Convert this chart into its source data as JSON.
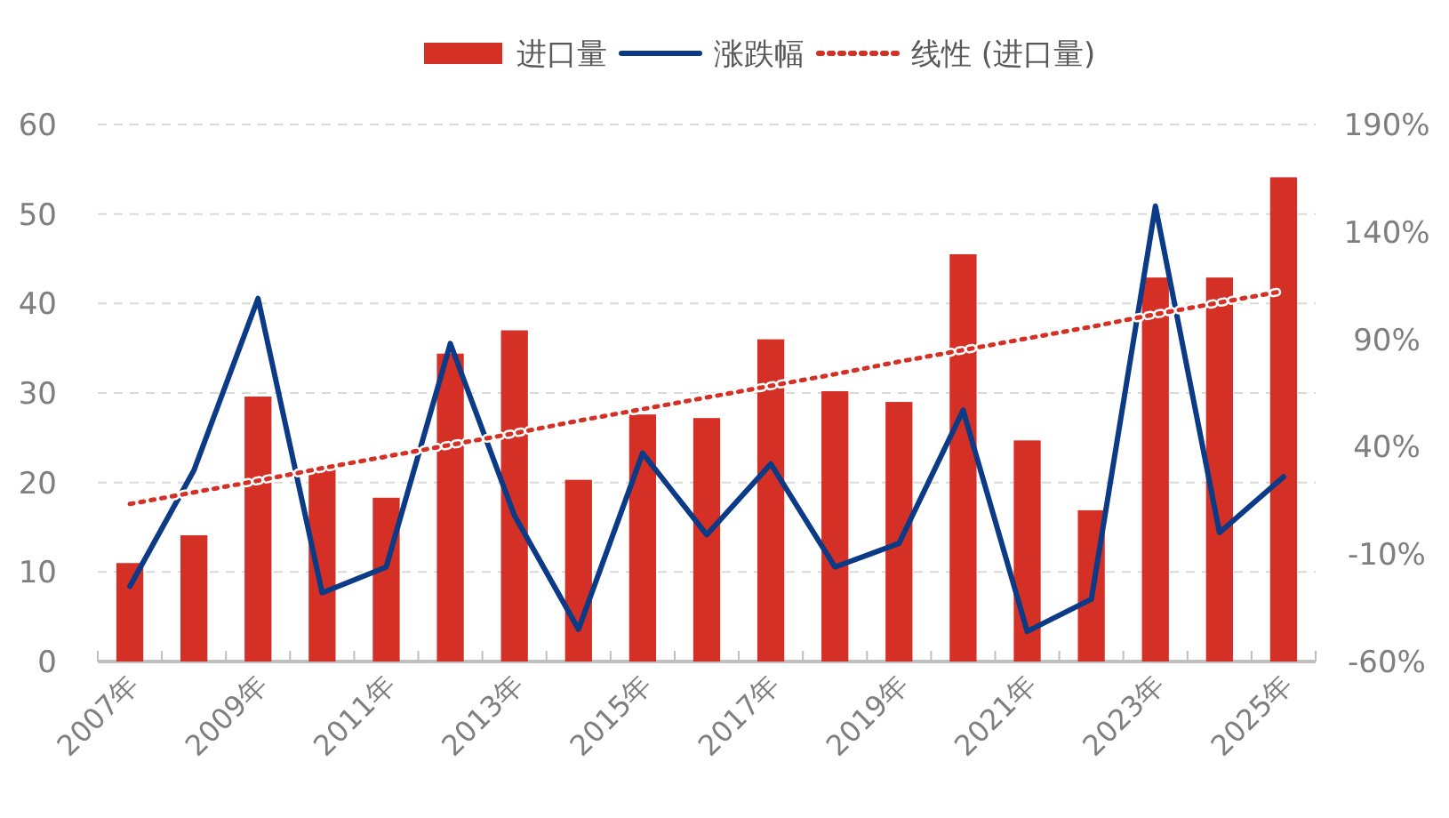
{
  "chart_data": {
    "type": "bar",
    "categories": [
      "2007年",
      null,
      "2009年",
      null,
      "2011年",
      null,
      "2013年",
      null,
      "2015年",
      null,
      "2017年",
      null,
      "2019年",
      null,
      "2021年",
      null,
      "2023年",
      null,
      "2025年"
    ],
    "series": [
      {
        "name": "进口量",
        "color": "#d43025",
        "values": [
          11.0,
          14.1,
          29.6,
          21.5,
          18.3,
          34.4,
          37.0,
          20.3,
          27.6,
          27.2,
          36.0,
          30.2,
          29.0,
          45.5,
          24.7,
          16.9,
          42.9,
          42.9,
          54.1
        ]
      },
      {
        "name": "涨跌幅",
        "type": "line",
        "axis": "y2",
        "color": "#0b3a86",
        "line_style": "solid",
        "values": [
          -25,
          29,
          109,
          -28,
          -16,
          88,
          8,
          -45,
          37,
          -1,
          32,
          -16,
          -5,
          57,
          -46,
          -31,
          152,
          0,
          26
        ]
      },
      {
        "name": "线性 (进口量)",
        "type": "line",
        "color": "#d43025",
        "line_style": "dotted",
        "values": [
          17.6,
          18.9,
          20.2,
          21.6,
          22.9,
          24.2,
          25.5,
          26.9,
          28.2,
          29.5,
          30.8,
          32.1,
          33.5,
          34.8,
          36.1,
          37.4,
          38.8,
          40.1,
          41.4
        ]
      }
    ],
    "ylim": [
      0,
      60
    ],
    "yticks": [
      0,
      10,
      20,
      30,
      40,
      50,
      60
    ],
    "y2lim": [
      -60,
      190
    ],
    "y2ticks": [
      {
        "value": -60,
        "label": "-60%"
      },
      {
        "value": -10,
        "label": "-10%"
      },
      {
        "value": 40,
        "label": "40%"
      },
      {
        "value": 90,
        "label": "90%"
      },
      {
        "value": 140,
        "label": "140%"
      },
      {
        "value": 190,
        "label": "190%"
      }
    ],
    "grid": "y",
    "legend": "top"
  }
}
